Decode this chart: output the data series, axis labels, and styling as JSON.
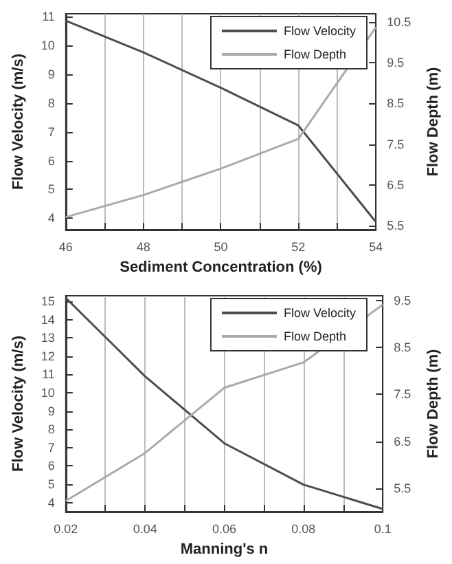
{
  "chart_data": [
    {
      "type": "line",
      "xlabel": "Sediment Concentration (%)",
      "ylabel": "Flow Velocity (m/s)",
      "y2label": "Flow Depth (m)",
      "x": [
        46,
        48,
        50,
        52,
        54
      ],
      "series": [
        {
          "name": "Flow Velocity",
          "color": "#4d4d4d",
          "values": [
            10.86,
            9.76,
            8.53,
            7.22,
            3.87
          ]
        },
        {
          "name": "Flow Depth",
          "color": "#aaaaaa",
          "axis": "y2",
          "values": [
            5.71,
            6.25,
            6.9,
            7.63,
            10.37
          ]
        }
      ],
      "xlim": [
        46,
        54
      ],
      "xticks": [
        46,
        {
          "value": 47,
          "label": null
        },
        48,
        {
          "value": 49,
          "label": null
        },
        50,
        {
          "value": 51,
          "label": null
        },
        52,
        {
          "value": 53,
          "label": null
        },
        54
      ],
      "ylim": [
        3.6,
        11.1
      ],
      "yticks": [
        4,
        5,
        6,
        7,
        8,
        9,
        10,
        11
      ],
      "y2lim": [
        5.4,
        10.7
      ],
      "y2ticks": [
        5.5,
        6.5,
        7.5,
        8.5,
        9.5,
        10.5
      ],
      "grid": "x",
      "legend": "top right",
      "marker": "none",
      "line_style": "solid"
    },
    {
      "type": "line",
      "xlabel": "Manning's n",
      "ylabel": "Flow Velocity (m/s)",
      "y2label": "Flow Depth (m)",
      "x": [
        0.02,
        0.04,
        0.06,
        0.08,
        0.1
      ],
      "series": [
        {
          "name": "Flow Velocity",
          "color": "#4d4d4d",
          "values": [
            15.18,
            10.9,
            7.24,
            4.98,
            3.65
          ]
        },
        {
          "name": "Flow Depth",
          "color": "#aaaaaa",
          "axis": "y2",
          "values": [
            5.23,
            6.25,
            7.64,
            8.18,
            9.41
          ]
        }
      ],
      "xlim": [
        0.02,
        0.1
      ],
      "xticks": [
        0.02,
        {
          "value": 0.03,
          "label": null
        },
        0.04,
        {
          "value": 0.05,
          "label": null
        },
        0.06,
        {
          "value": 0.07,
          "label": null
        },
        0.08,
        {
          "value": 0.09,
          "label": null
        },
        0.1
      ],
      "ylim": [
        3.5,
        15.3
      ],
      "yticks": [
        4,
        5,
        6,
        7,
        8,
        9,
        10,
        11,
        12,
        13,
        14,
        15
      ],
      "y2lim": [
        5,
        9.6
      ],
      "y2ticks": [
        5.5,
        6.5,
        7.5,
        8.5,
        9.5
      ],
      "grid": "x",
      "legend": "top right",
      "marker": "none",
      "line_style": "solid"
    }
  ]
}
